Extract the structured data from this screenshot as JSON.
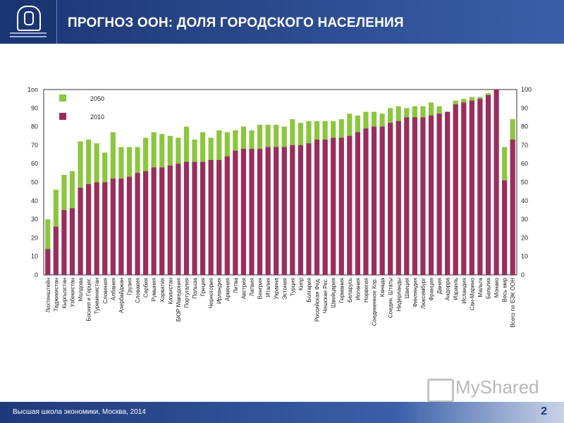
{
  "header": {
    "title": "ПРОГНОЗ ООН: ДОЛЯ ГОРОДСКОГО НАСЕЛЕНИЯ"
  },
  "footer": {
    "text": "Высшая школа экономики, Москва, 2014",
    "page": "2"
  },
  "watermark": {
    "text": "MyShared"
  },
  "colors": {
    "series_2050": "#8cc63f",
    "series_2010": "#9b2d5e",
    "header": "#1f3a7a"
  },
  "chart_data": {
    "type": "bar",
    "stacked": "overlay",
    "ylim": [
      0,
      100
    ],
    "y_ticks": [
      "0",
      "10",
      "20",
      "30",
      "40",
      "50",
      "60",
      "70",
      "80",
      "90",
      "100"
    ],
    "y_ticks_left_top": "1oo",
    "legend": [
      "2050",
      "2010"
    ],
    "legend_position": "top-left",
    "categories": [
      "Лихтенштейн",
      "Таджикистан",
      "Кыргызстан",
      "Узбекистан",
      "Молдова",
      "Босния и Герцег.",
      "Туркменистан",
      "Словения",
      "Албания",
      "Азербайджан",
      "Грузия",
      "Словакия",
      "Сербия",
      "Румыния",
      "Хорватия",
      "Казахстан",
      "БЮР Македония",
      "Португалия",
      "Польша",
      "Греция",
      "Черногория",
      "Ирландия",
      "Армения",
      "Литва",
      "Австрия",
      "Латвия",
      "Венгрия",
      "Италия",
      "Украина",
      "Эстония",
      "Турция",
      "Кипр",
      "Болгария",
      "Российская Фед.",
      "Чешская Рес.",
      "Швейцария",
      "Германия",
      "Беларусь",
      "Испания",
      "Норвегия",
      "Соединенное Кор.",
      "Канада",
      "Соедин. Штаты",
      "Нидерланды",
      "Швеция",
      "Финляндия",
      "Люксембург",
      "Франция",
      "Дания",
      "Андорра",
      "Израиль",
      "Исландия",
      "Сан-Марино",
      "Мальта",
      "Бельгия",
      "Монако",
      "Весь мир",
      "Всего по ЕЭК ООН"
    ],
    "series": [
      {
        "name": "2050",
        "values": [
          30,
          46,
          54,
          56,
          72,
          73,
          71,
          66,
          77,
          69,
          69,
          69,
          74,
          77,
          76,
          75,
          74,
          80,
          73,
          77,
          74,
          78,
          77,
          78,
          80,
          78,
          81,
          81,
          81,
          80,
          84,
          82,
          83,
          83,
          83,
          83,
          84,
          87,
          86,
          88,
          88,
          87,
          90,
          91,
          90,
          91,
          91,
          93,
          91,
          88,
          94,
          95,
          96,
          96,
          98,
          100,
          69,
          84
        ]
      },
      {
        "name": "2010",
        "values": [
          14,
          26,
          35,
          36,
          47,
          49,
          50,
          50,
          52,
          52,
          53,
          55,
          56,
          58,
          58,
          59,
          60,
          61,
          61,
          61,
          62,
          62,
          64,
          67,
          68,
          68,
          68,
          69,
          69,
          69,
          70,
          70,
          71,
          73,
          73,
          74,
          74,
          75,
          77,
          79,
          80,
          80,
          82,
          83,
          85,
          85,
          85,
          86,
          87,
          88,
          92,
          93,
          94,
          95,
          97,
          100,
          51,
          73
        ]
      }
    ]
  }
}
